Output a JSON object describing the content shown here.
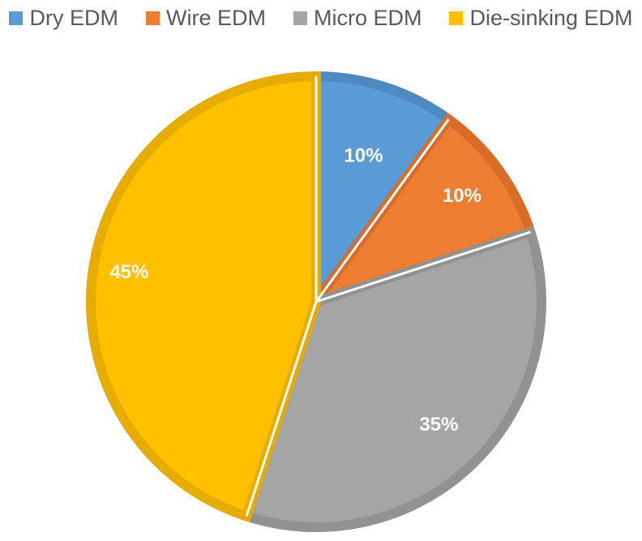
{
  "chart_data": {
    "type": "pie",
    "title": "",
    "legend_position": "top",
    "categories": [
      "Dry EDM",
      "Wire EDM",
      "Micro EDM",
      "Die-sinking EDM"
    ],
    "values": [
      10,
      10,
      35,
      45
    ],
    "labels": [
      "10%",
      "10%",
      "35%",
      "45%"
    ],
    "colors": [
      "#5b9bd5",
      "#ed7d31",
      "#a5a5a5",
      "#ffc000"
    ],
    "border_colors": [
      "#4e89c2",
      "#d86c28",
      "#929292",
      "#e6ac00"
    ]
  }
}
